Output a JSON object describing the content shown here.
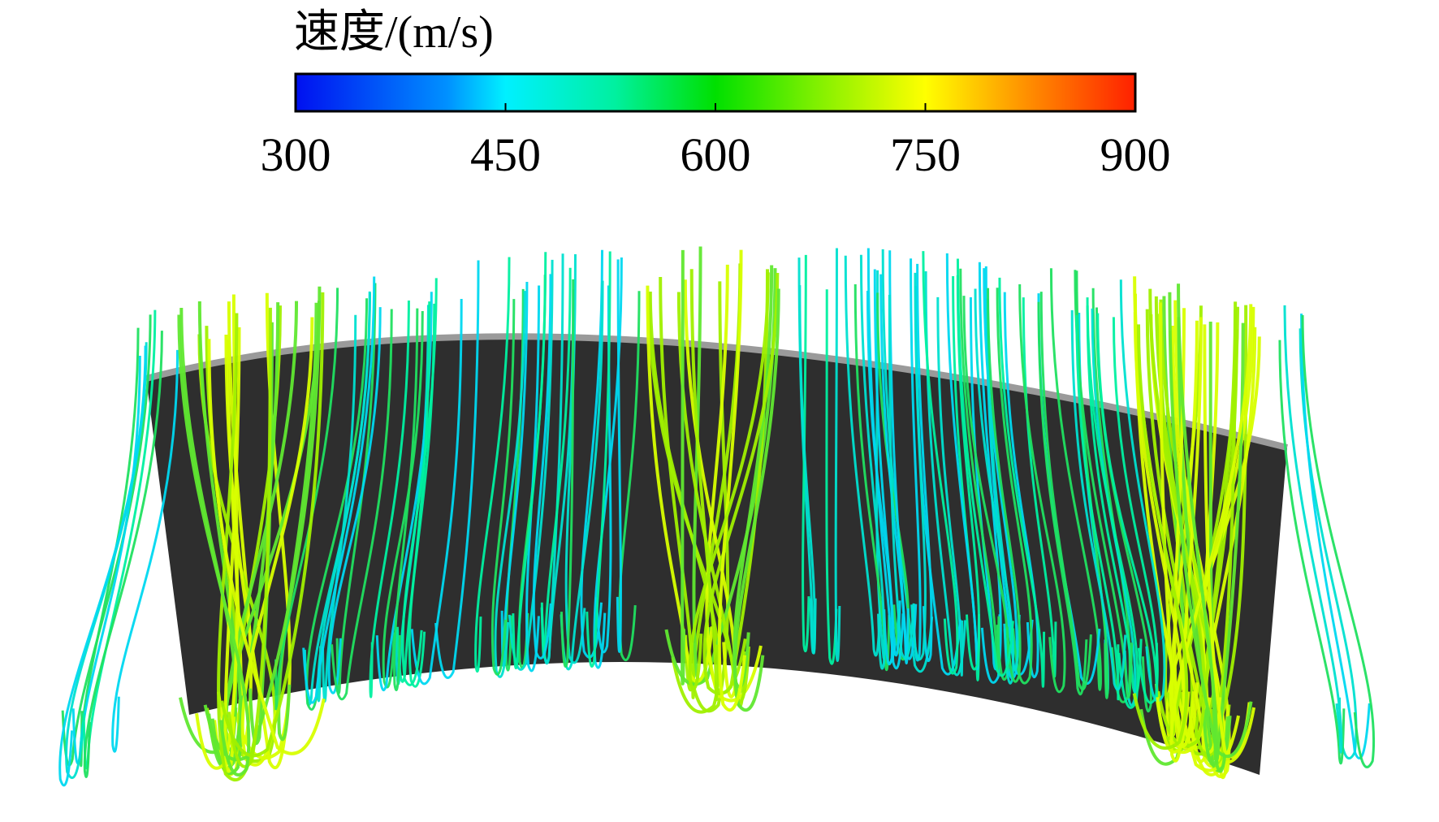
{
  "colorbar": {
    "title": "速度/(m/s)",
    "range": [
      300,
      900
    ],
    "ticks": [
      300,
      450,
      600,
      750,
      900
    ]
  }
}
